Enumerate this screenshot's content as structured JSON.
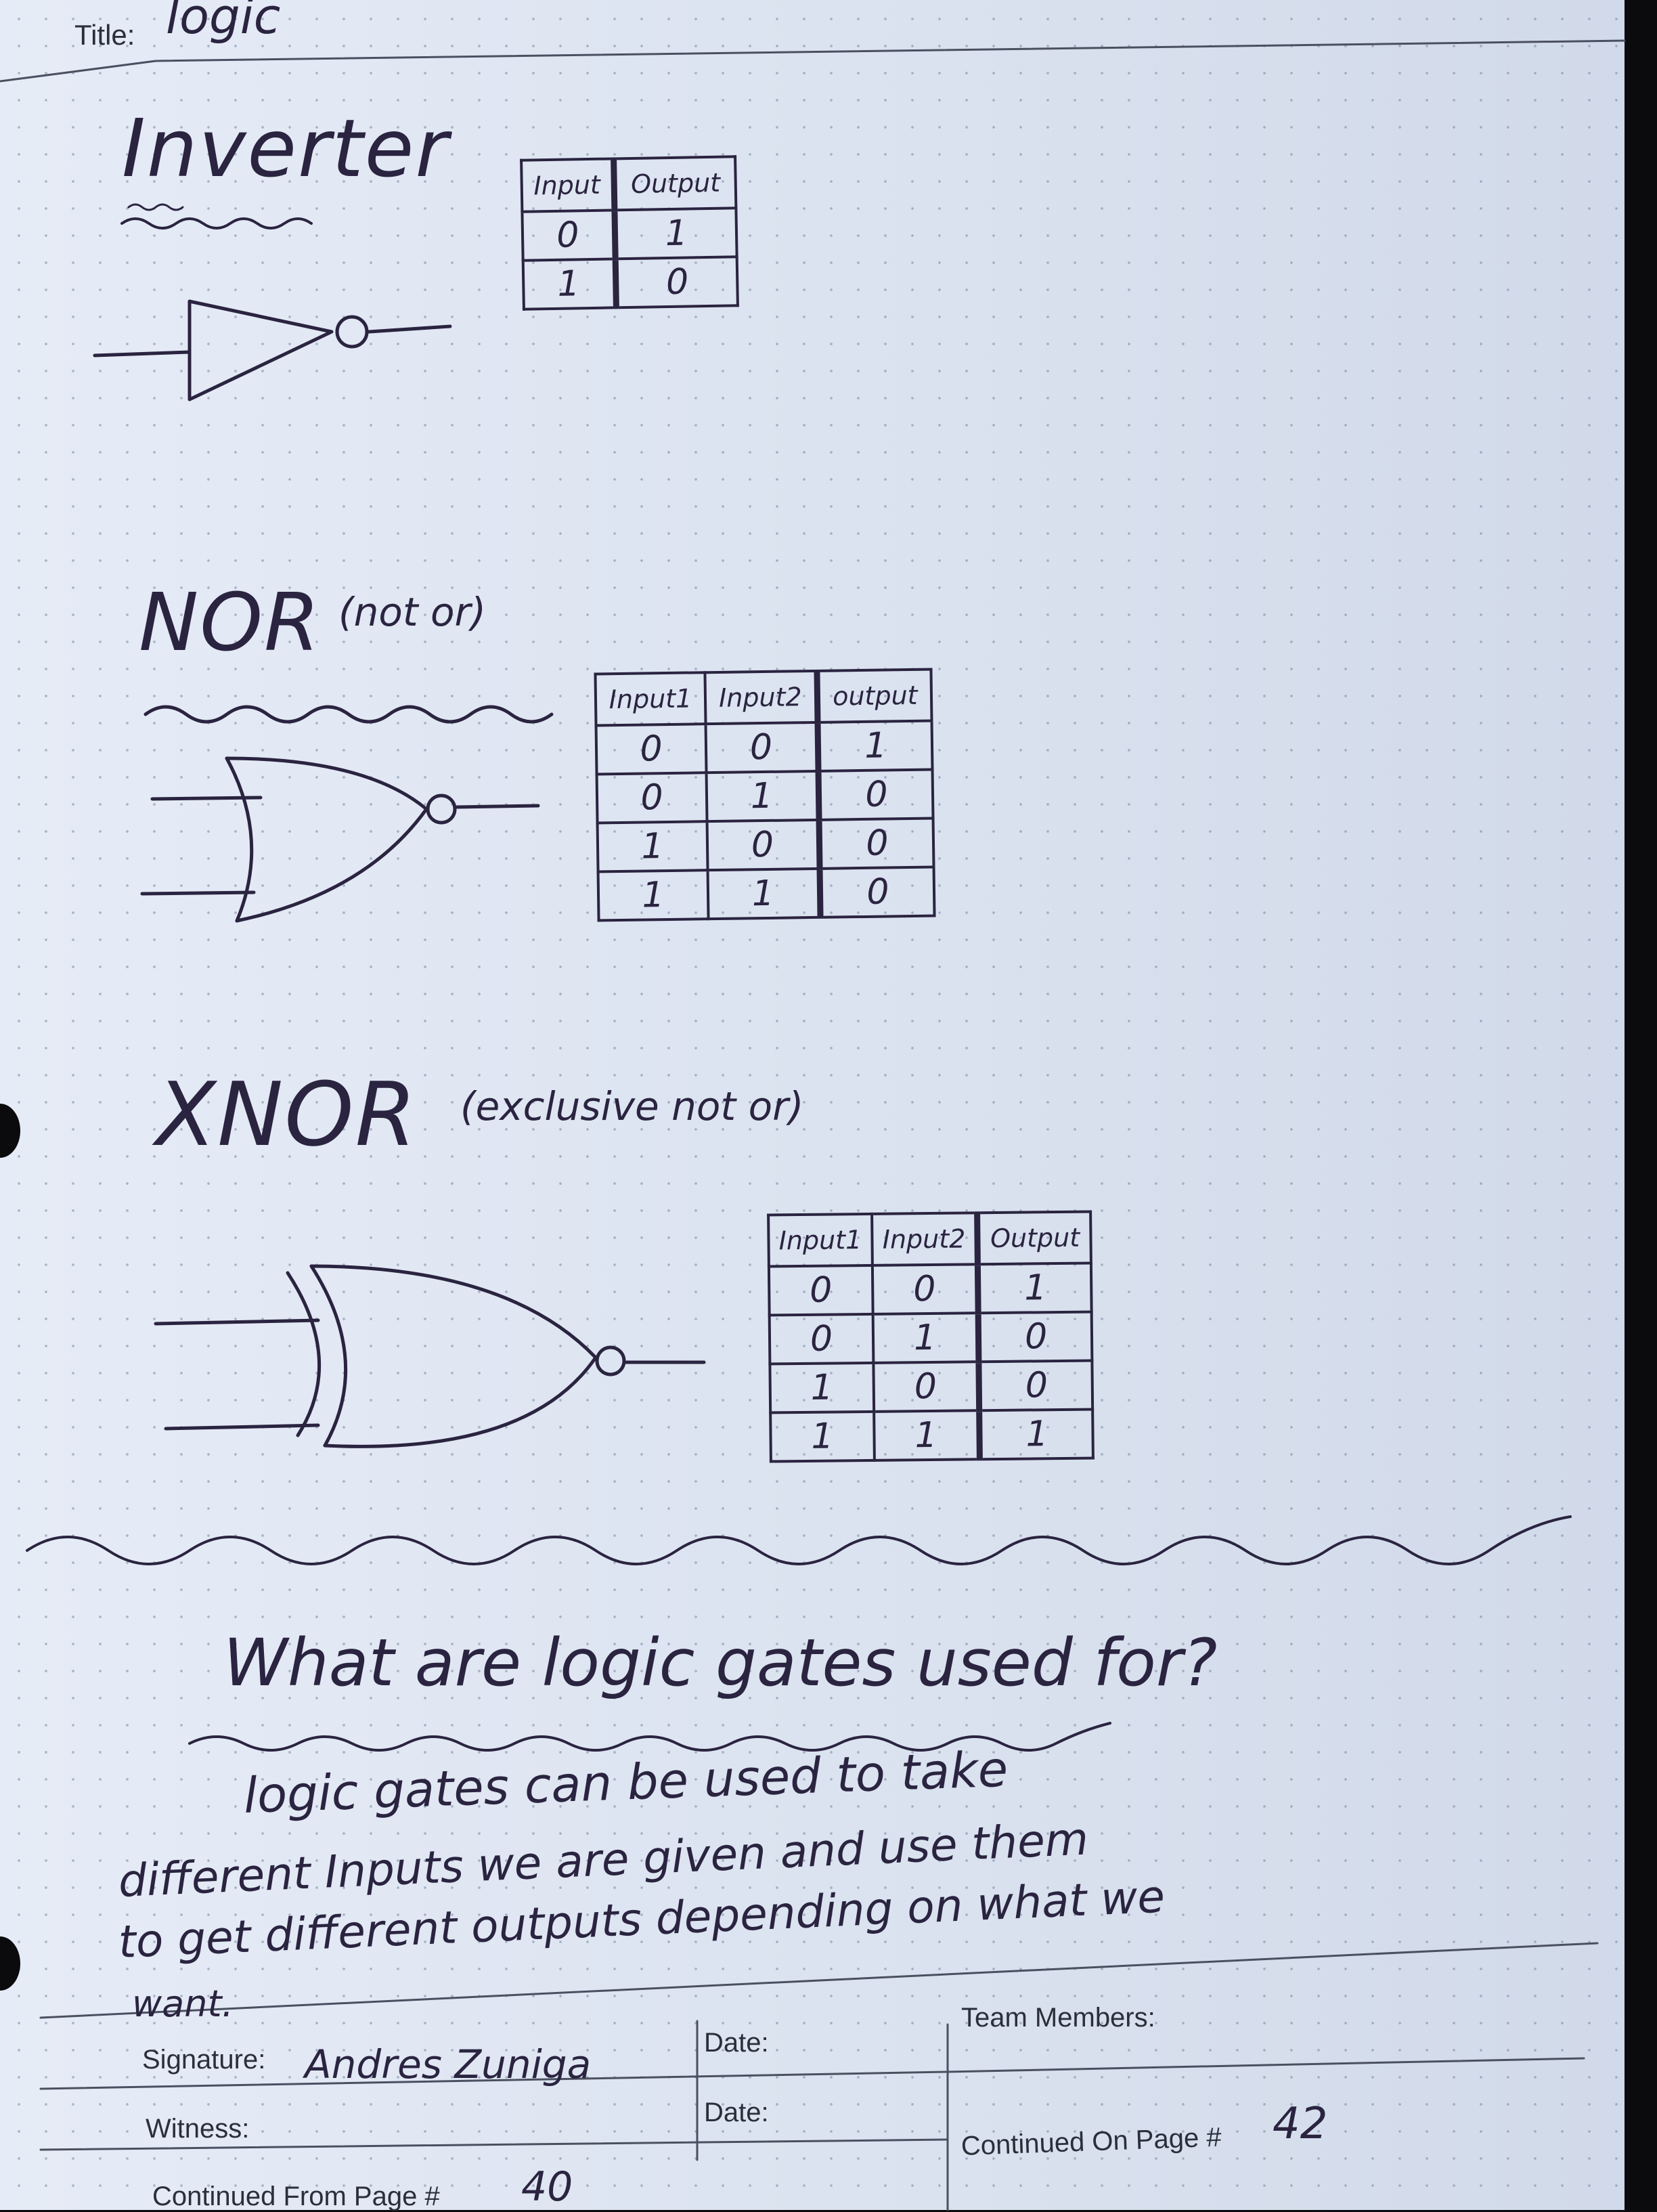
{
  "header": {
    "title_label": "Title:",
    "title_value": "logic"
  },
  "inverter": {
    "heading": "Inverter",
    "table": {
      "headers": [
        "Input",
        "Output"
      ],
      "rows": [
        [
          "0",
          "1"
        ],
        [
          "1",
          "0"
        ]
      ]
    }
  },
  "nor": {
    "heading": "NOR",
    "subtitle": "(not or)",
    "table": {
      "headers": [
        "Input1",
        "Input2",
        "output"
      ],
      "rows": [
        [
          "0",
          "0",
          "1"
        ],
        [
          "0",
          "1",
          "0"
        ],
        [
          "1",
          "0",
          "0"
        ],
        [
          "1",
          "1",
          "0"
        ]
      ]
    }
  },
  "xnor": {
    "heading": "XNOR",
    "subtitle": "(exclusive not or)",
    "table": {
      "headers": [
        "Input1",
        "Input2",
        "Output"
      ],
      "rows": [
        [
          "0",
          "0",
          "1"
        ],
        [
          "0",
          "1",
          "0"
        ],
        [
          "1",
          "0",
          "0"
        ],
        [
          "1",
          "1",
          "1"
        ]
      ]
    }
  },
  "question": {
    "text": "What are logic gates used for?",
    "answer_lines": [
      "logic gates can be used to take",
      "different Inputs we are given and use them",
      "to get different outputs depending on what we",
      "want."
    ]
  },
  "footer": {
    "signature_label": "Signature:",
    "signature_value": "Andres Zuniga",
    "date_label_1": "Date:",
    "witness_label": "Witness:",
    "date_label_2": "Date:",
    "team_members_label": "Team Members:",
    "continued_on_label": "Continued On Page #",
    "continued_on_value": "42",
    "continued_from_label": "Continued From Page #",
    "continued_from_value": "40"
  }
}
